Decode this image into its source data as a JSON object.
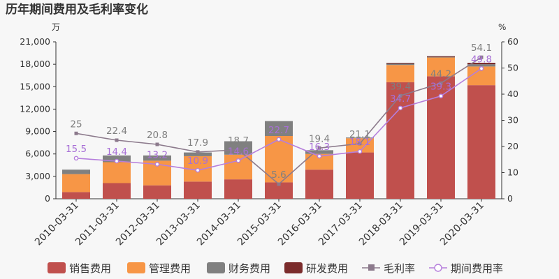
{
  "chart_data": {
    "type": "bar",
    "title": "历年期间费用及毛利率变化",
    "y_left_unit": "万",
    "y_right_unit": "%",
    "ylim_left": [
      0,
      21000
    ],
    "ylim_right": [
      0,
      60
    ],
    "left_ticks": [
      "0",
      "3,000",
      "6,000",
      "9,000",
      "12,000",
      "15,000",
      "18,000",
      "21,000"
    ],
    "right_ticks": [
      "0",
      "10",
      "20",
      "30",
      "40",
      "50",
      "60"
    ],
    "categories": [
      "2010-03-31",
      "2011-03-31",
      "2012-03-31",
      "2013-03-31",
      "2014-03-31",
      "2015-03-31",
      "2016-03-31",
      "2017-03-31",
      "2018-03-31",
      "2019-03-31",
      "2020-03-31"
    ],
    "stacked": true,
    "series": [
      {
        "name": "销售费用",
        "color": "#c0504d",
        "values": [
          900,
          2100,
          1800,
          2300,
          2600,
          2200,
          3900,
          6200,
          15600,
          16400,
          15200
        ]
      },
      {
        "name": "管理费用",
        "color": "#f79646",
        "values": [
          2400,
          2800,
          3300,
          3400,
          3300,
          6200,
          2100,
          1900,
          2300,
          2500,
          2500
        ]
      },
      {
        "name": "财务费用",
        "color": "#808080",
        "values": [
          600,
          900,
          700,
          500,
          1800,
          2000,
          500,
          100,
          200,
          100,
          300
        ]
      },
      {
        "name": "研发费用",
        "color": "#7b2c2c",
        "values": [
          0,
          0,
          0,
          0,
          0,
          0,
          0,
          0,
          100,
          100,
          200
        ]
      }
    ],
    "lines": [
      {
        "name": "毛利率",
        "color": "#8c7a8c",
        "marker": "square",
        "axis": "right",
        "values": [
          25,
          22.4,
          20.8,
          17.9,
          18.7,
          5.6,
          19.4,
          21.1,
          39.4,
          44.2,
          54.1
        ]
      },
      {
        "name": "期间费用率",
        "color": "#b57edc",
        "marker": "circle",
        "axis": "right",
        "values": [
          15.5,
          14.4,
          13.2,
          10.9,
          14.6,
          22.7,
          16.3,
          18.1,
          34.7,
          39.3,
          49.8
        ]
      }
    ],
    "legend_position": "bottom",
    "grid": false
  }
}
